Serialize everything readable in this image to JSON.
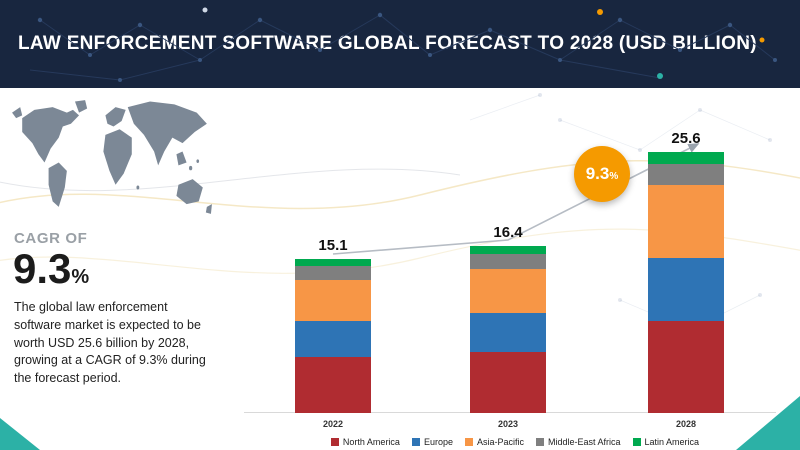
{
  "header": {
    "title": "LAW ENFORCEMENT SOFTWARE GLOBAL FORECAST TO 2028 (USD BILLION)"
  },
  "sidebar": {
    "cagr_label": "CAGR OF",
    "cagr_value": "9.3",
    "cagr_unit": "%",
    "description": "The global law enforcement software market is expected to be worth USD 25.6 billion by 2028, growing at a CAGR of 9.3% during the forecast period."
  },
  "chart_data": {
    "type": "bar",
    "stacked": true,
    "title": "LAW ENFORCEMENT SOFTWARE GLOBAL FORECAST TO 2028 (USD BILLION)",
    "categories": [
      "2022",
      "2023",
      "2028"
    ],
    "totals": [
      15.1,
      16.4,
      25.6
    ],
    "series": [
      {
        "name": "North America",
        "color": "#b02c31",
        "values": [
          5.5,
          6.0,
          9.0
        ]
      },
      {
        "name": "Europe",
        "color": "#2e74b5",
        "values": [
          3.5,
          3.8,
          6.2
        ]
      },
      {
        "name": "Asia-Pacific",
        "color": "#f79646",
        "values": [
          4.0,
          4.3,
          7.2
        ]
      },
      {
        "name": "Middle-East Africa",
        "color": "#7f7f7f",
        "values": [
          1.4,
          1.5,
          2.0
        ]
      },
      {
        "name": "Latin America",
        "color": "#00a94f",
        "values": [
          0.7,
          0.8,
          1.2
        ]
      }
    ],
    "badge_value": "9.3",
    "badge_unit": "%",
    "ylim": [
      0,
      28
    ],
    "legend_position": "bottom",
    "grid": false
  },
  "theme": {
    "navy": "#18263f",
    "teal": "#2cb1a6",
    "accent_orange": "#f59a00",
    "map_gray": "#7c8896"
  }
}
